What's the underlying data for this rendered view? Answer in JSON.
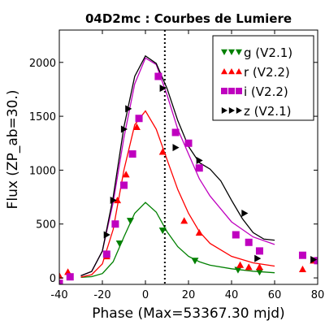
{
  "chart_data": {
    "type": "scatter",
    "title": "04D2mc : Courbes de Lumiere",
    "xlabel": "Phase (Max=53367.30 mjd)",
    "ylabel": "Flux (ZP_ab=30.)",
    "xlim": [
      -40,
      80
    ],
    "ylim": [
      -60,
      2300
    ],
    "x_ticks": [
      -40,
      -20,
      0,
      20,
      40,
      60,
      80
    ],
    "y_ticks": [
      0,
      500,
      1000,
      1500,
      2000
    ],
    "x_tick_labels": [
      "-40",
      "-20",
      "0",
      "20",
      "40",
      "60",
      "80"
    ],
    "y_tick_labels": [
      "0",
      "500",
      "1000",
      "1500",
      "2000"
    ],
    "grid": false,
    "legend_position": "top-right",
    "annotations": [
      {
        "type": "vertical-dotted-line",
        "x": 9
      }
    ],
    "series": [
      {
        "name": "g (V2.1)",
        "marker": "triangle-down",
        "color": "#008000",
        "points": [
          [
            -12,
            320
          ],
          [
            -7,
            530
          ],
          [
            8,
            440
          ],
          [
            23,
            160
          ],
          [
            43,
            75
          ],
          [
            53,
            55
          ]
        ],
        "model": [
          [
            -30,
            5
          ],
          [
            -25,
            12
          ],
          [
            -20,
            40
          ],
          [
            -15,
            150
          ],
          [
            -10,
            380
          ],
          [
            -5,
            600
          ],
          [
            0,
            700
          ],
          [
            5,
            610
          ],
          [
            10,
            430
          ],
          [
            15,
            290
          ],
          [
            20,
            200
          ],
          [
            25,
            150
          ],
          [
            30,
            118
          ],
          [
            40,
            85
          ],
          [
            50,
            62
          ],
          [
            60,
            48
          ]
        ]
      },
      {
        "name": "r (V2.2)",
        "marker": "triangle-up",
        "color": "#ff0000",
        "points": [
          [
            -40,
            20
          ],
          [
            -36,
            55
          ],
          [
            -18,
            200
          ],
          [
            -13,
            720
          ],
          [
            -9,
            960
          ],
          [
            -4,
            1400
          ],
          [
            8,
            1170
          ],
          [
            18,
            530
          ],
          [
            25,
            420
          ],
          [
            44,
            120
          ],
          [
            48,
            100
          ],
          [
            53,
            100
          ],
          [
            73,
            80
          ],
          [
            78,
            160
          ]
        ],
        "model": [
          [
            -30,
            8
          ],
          [
            -25,
            30
          ],
          [
            -20,
            130
          ],
          [
            -15,
            450
          ],
          [
            -10,
            1000
          ],
          [
            -5,
            1420
          ],
          [
            0,
            1550
          ],
          [
            5,
            1380
          ],
          [
            10,
            1100
          ],
          [
            15,
            820
          ],
          [
            20,
            600
          ],
          [
            25,
            430
          ],
          [
            30,
            320
          ],
          [
            40,
            200
          ],
          [
            50,
            140
          ],
          [
            60,
            110
          ]
        ]
      },
      {
        "name": "i (V2.2)",
        "marker": "square",
        "color": "#bf00bf",
        "points": [
          [
            -40,
            -50
          ],
          [
            -35,
            10
          ],
          [
            -18,
            220
          ],
          [
            -14,
            500
          ],
          [
            -10,
            860
          ],
          [
            -6,
            1150
          ],
          [
            -3,
            1480
          ],
          [
            6,
            1870
          ],
          [
            14,
            1350
          ],
          [
            20,
            1250
          ],
          [
            25,
            1020
          ],
          [
            42,
            400
          ],
          [
            48,
            330
          ],
          [
            53,
            250
          ],
          [
            73,
            210
          ],
          [
            80,
            160
          ]
        ],
        "model": [
          [
            -30,
            20
          ],
          [
            -25,
            60
          ],
          [
            -20,
            250
          ],
          [
            -15,
            700
          ],
          [
            -10,
            1300
          ],
          [
            -5,
            1800
          ],
          [
            0,
            2040
          ],
          [
            5,
            1980
          ],
          [
            10,
            1700
          ],
          [
            15,
            1380
          ],
          [
            20,
            1150
          ],
          [
            25,
            920
          ],
          [
            30,
            760
          ],
          [
            40,
            520
          ],
          [
            50,
            380
          ],
          [
            60,
            310
          ]
        ]
      },
      {
        "name": "z (V2.1)",
        "marker": "triangle-right",
        "color": "#000000",
        "points": [
          [
            -18,
            400
          ],
          [
            -15,
            720
          ],
          [
            -10,
            1380
          ],
          [
            -8,
            1570
          ],
          [
            8,
            1760
          ],
          [
            14,
            1210
          ],
          [
            25,
            1090
          ],
          [
            46,
            600
          ],
          [
            52,
            180
          ],
          [
            78,
            170
          ]
        ],
        "model": [
          [
            -30,
            20
          ],
          [
            -25,
            60
          ],
          [
            -20,
            250
          ],
          [
            -15,
            750
          ],
          [
            -10,
            1400
          ],
          [
            -5,
            1870
          ],
          [
            0,
            2060
          ],
          [
            5,
            1990
          ],
          [
            10,
            1760
          ],
          [
            15,
            1460
          ],
          [
            20,
            1220
          ],
          [
            25,
            1070
          ],
          [
            30,
            1010
          ],
          [
            35,
            900
          ],
          [
            40,
            720
          ],
          [
            45,
            550
          ],
          [
            50,
            420
          ],
          [
            55,
            360
          ],
          [
            60,
            350
          ]
        ]
      }
    ]
  }
}
